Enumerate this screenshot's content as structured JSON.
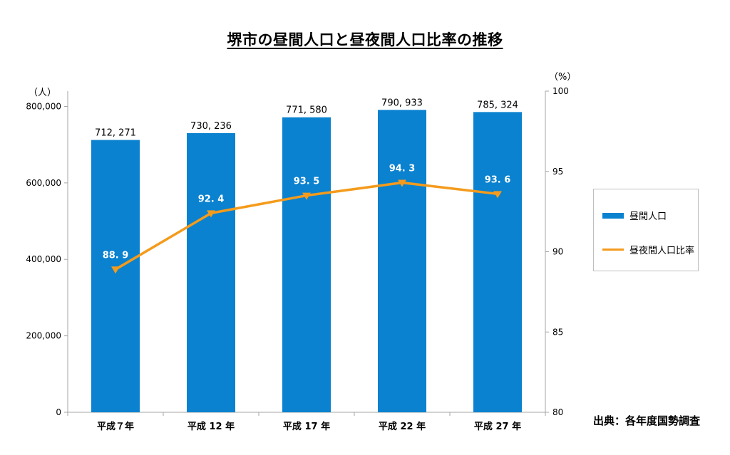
{
  "chart_data": {
    "type": "bar",
    "title": "堺市の昼間人口と昼夜間人口比率の推移",
    "categories": [
      "平成７年",
      "平成 12 年",
      "平成 17 年",
      "平成 22 年",
      "平成 27 年"
    ],
    "series": [
      {
        "name": "昼間人口",
        "type": "bar",
        "axis": "left",
        "values": [
          712271,
          730236,
          771580,
          790933,
          785324
        ],
        "labels": [
          "712, 271",
          "730, 236",
          "771, 580",
          "790, 933",
          "785, 324"
        ]
      },
      {
        "name": "昼夜間人口比率",
        "type": "line",
        "axis": "right",
        "values": [
          88.9,
          92.4,
          93.5,
          94.3,
          93.6
        ],
        "labels": [
          "88. 9",
          "92. 4",
          "93. 5",
          "94. 3",
          "93. 6"
        ]
      }
    ],
    "y_left": {
      "unit_label": "（人）",
      "range": [
        0,
        840000
      ],
      "ticks": [
        0,
        200000,
        400000,
        600000,
        800000
      ],
      "tick_labels": [
        "0",
        "200,000",
        "400,000",
        "600,000",
        "800,000"
      ]
    },
    "y_right": {
      "unit_label": "（%）",
      "range": [
        80,
        100
      ],
      "ticks": [
        80,
        85,
        90,
        95,
        100
      ],
      "tick_labels": [
        "80",
        "85",
        "90",
        "95",
        "100"
      ]
    },
    "grid": false,
    "legend_position": "right"
  },
  "source_note": "出典：各年度国勢調査",
  "colors": {
    "bar": "#0a82cf",
    "line": "#f49b1c",
    "axis": "#a6a6a6"
  }
}
